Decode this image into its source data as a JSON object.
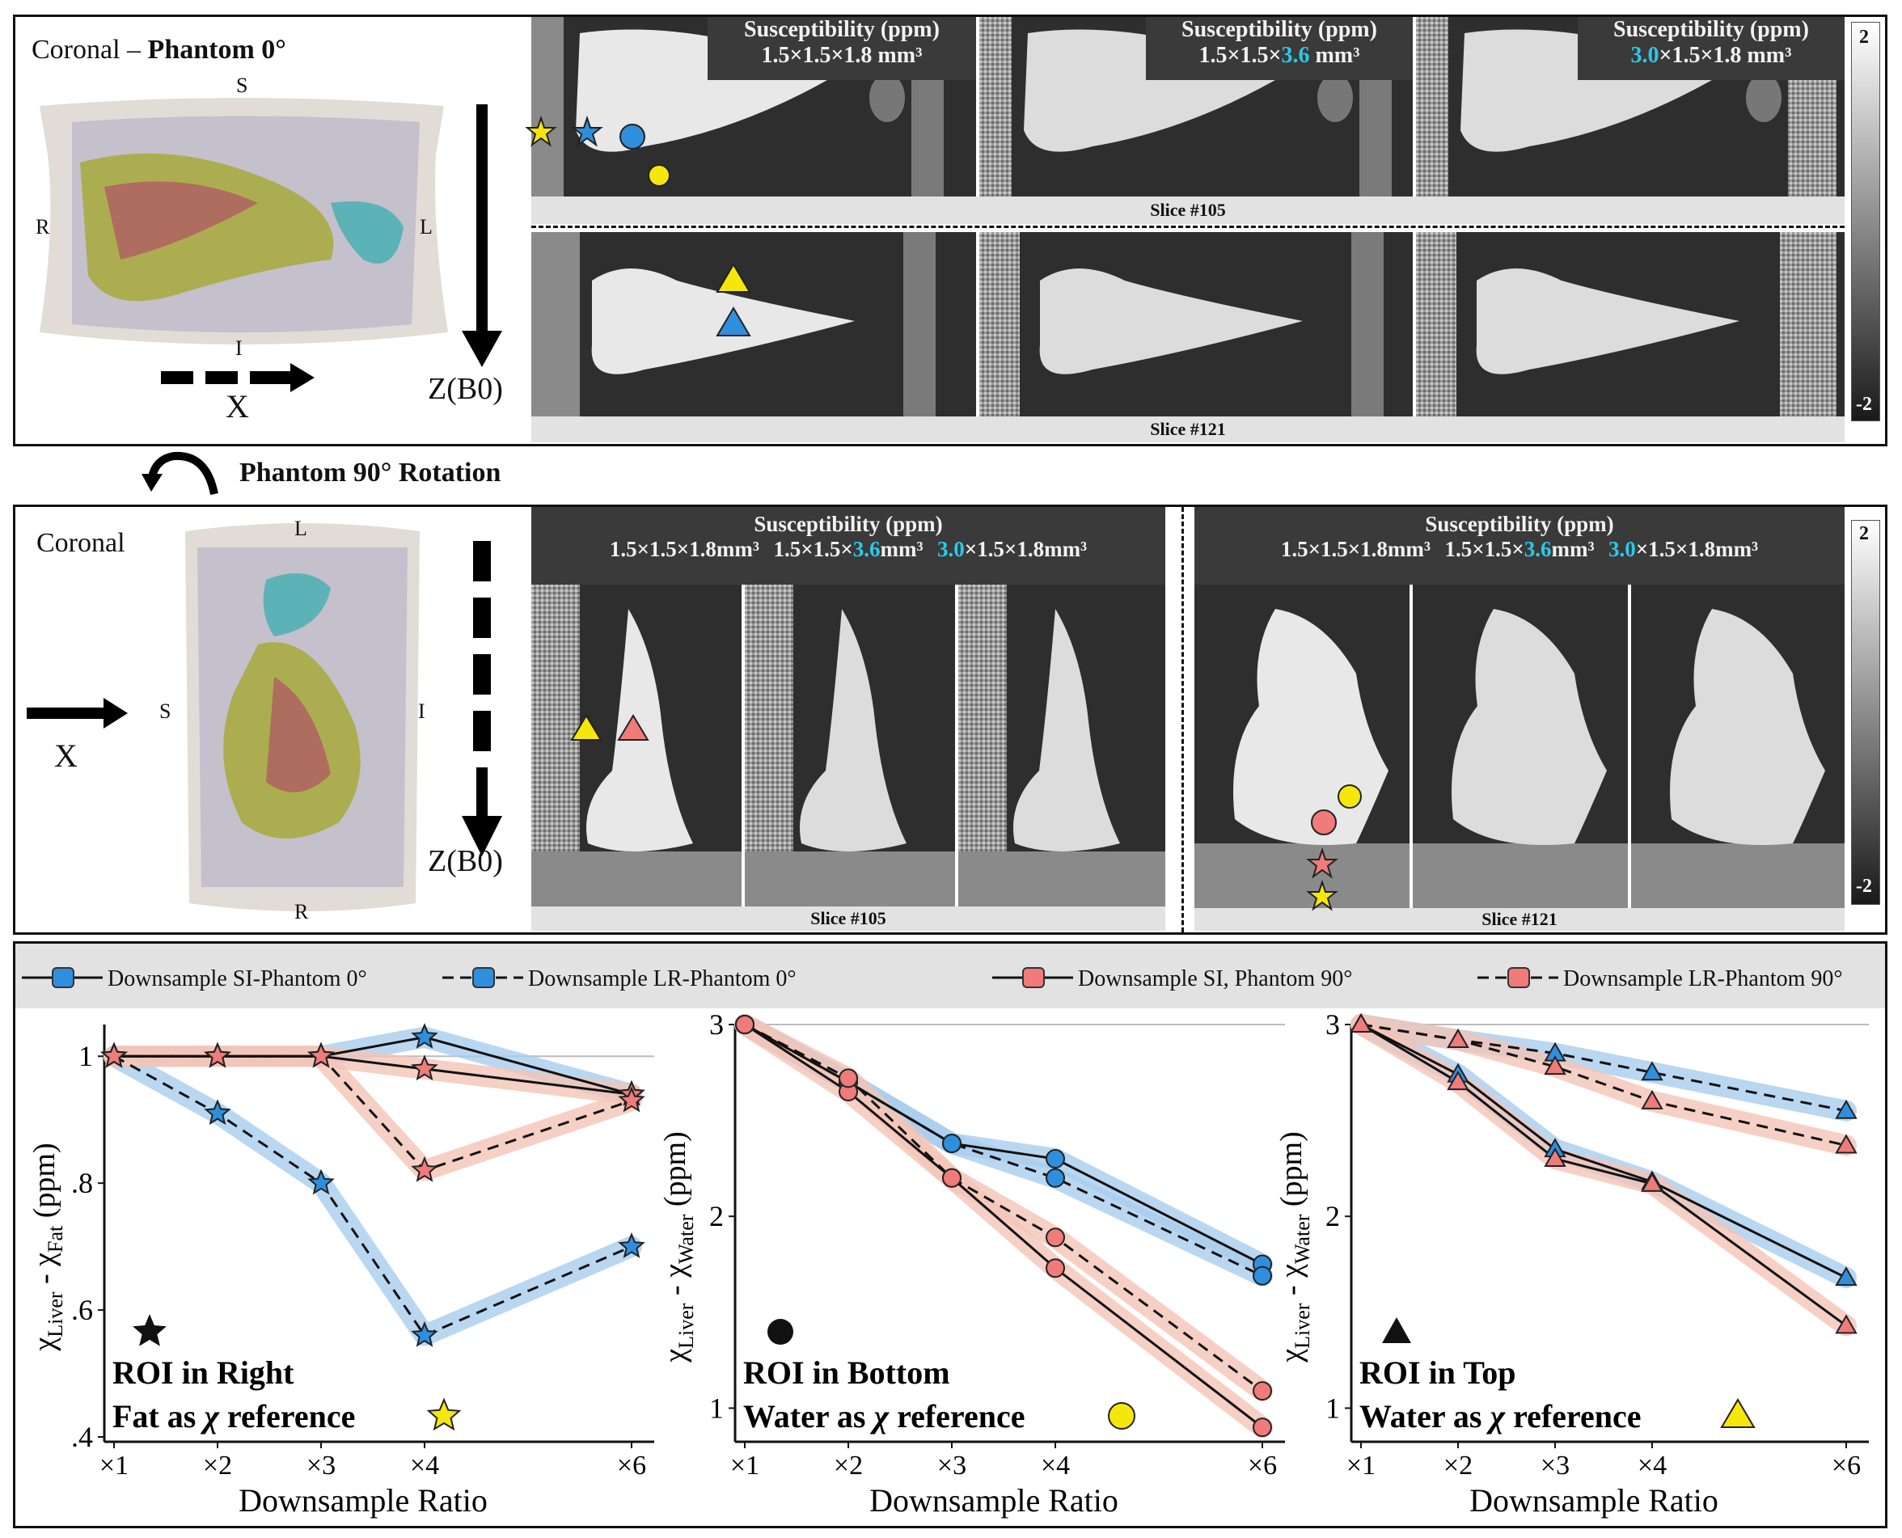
{
  "panel_top": {
    "coronal_label": "Coronal –",
    "phantom_label": "Phantom 0°",
    "dirs": {
      "S": "S",
      "I": "I",
      "R": "R",
      "L": "L"
    },
    "axis_x": "X",
    "axis_z": "Z(B0)",
    "header": "Susceptibility (ppm)",
    "res": [
      {
        "a": "1.5×1.5×1.8 mm³",
        "b": "",
        "c": ""
      },
      {
        "a": "1.5×1.5×",
        "b": "3.6",
        "c": " mm³"
      },
      {
        "a": "",
        "b": "3.0",
        "c": "×1.5×1.8 mm³"
      }
    ],
    "slice_a": "Slice #105",
    "slice_b": "Slice #121",
    "cbar_max": "2",
    "cbar_min": "-2"
  },
  "rotation_label": "Phantom 90° Rotation",
  "panel_mid": {
    "coronal_label": "Coronal",
    "dirs": {
      "L": "L",
      "S": "S",
      "I": "I",
      "R": "R"
    },
    "axis_x": "X",
    "axis_z": "Z(B0)",
    "header": "Susceptibility  (ppm)",
    "res_a": "1.5×1.5×1.8",
    "res_b1": "1.5×1.5×",
    "res_b2": "3.6",
    "res_c1": "3.0",
    "res_c2": "×1.5×1.8",
    "unit": "mm³",
    "slice_a": "Slice #105",
    "slice_b": "Slice #121",
    "cbar_max": "2",
    "cbar_min": "-2"
  },
  "legend": [
    {
      "label": "Downsample SI-Phantom 0°",
      "color": "#2f8fdc",
      "dash": false
    },
    {
      "label": "Downsample LR-Phantom 0°",
      "color": "#2f8fdc",
      "dash": true
    },
    {
      "label": "Downsample SI, Phantom 90°",
      "color": "#ef7b7b",
      "dash": false
    },
    {
      "label": "Downsample LR-Phantom 90°",
      "color": "#ef7b7b",
      "dash": true
    }
  ],
  "colors": {
    "blue": "#2f8fdc",
    "red": "#ef7b7b",
    "yellow": "#f5e60c",
    "blue_band": "#a9cdee",
    "red_band": "#f4c4b6"
  },
  "chart_data": [
    {
      "type": "line",
      "marker": "star",
      "categories": [
        "×1",
        "×2",
        "×3",
        "×4",
        "×6"
      ],
      "x": [
        1,
        2,
        3,
        4,
        6
      ],
      "ylim": [
        0.4,
        1.05
      ],
      "yticks": [
        0.4,
        0.6,
        0.8,
        1.0
      ],
      "ytick_labels": [
        ".4",
        ".6",
        ".8",
        "1"
      ],
      "xlabel": "Downsample Ratio",
      "ylabel": "χLiver - χFat (ppm)",
      "ylabel_main": "χ",
      "ylabel_sub1": "Liver",
      "ylabel_mid": " - χ",
      "ylabel_sub2": "Fat",
      "ylabel_unit": " (ppm)",
      "note1": "ROI in Right",
      "note2": "Fat as χ reference",
      "note2_pre": "Fat as ",
      "note2_chi": "χ",
      "note2_post": " reference",
      "series": [
        {
          "name": "Downsample SI-Phantom 0°",
          "values": [
            1.0,
            1.0,
            1.0,
            1.03,
            0.94
          ]
        },
        {
          "name": "Downsample LR-Phantom 0°",
          "values": [
            1.0,
            0.91,
            0.8,
            0.56,
            0.7
          ]
        },
        {
          "name": "Downsample SI, Phantom 90°",
          "values": [
            1.0,
            1.0,
            1.0,
            0.98,
            0.94
          ]
        },
        {
          "name": "Downsample LR-Phantom 90°",
          "values": [
            1.0,
            1.0,
            1.0,
            0.82,
            0.93
          ]
        }
      ]
    },
    {
      "type": "line",
      "marker": "circle",
      "categories": [
        "×1",
        "×2",
        "×3",
        "×4",
        "×6"
      ],
      "x": [
        1,
        2,
        3,
        4,
        6
      ],
      "ylim": [
        0.85,
        3.0
      ],
      "yticks": [
        1,
        2,
        3
      ],
      "ytick_labels": [
        "1",
        "2",
        "3"
      ],
      "xlabel": "Downsample Ratio",
      "ylabel": "χLiver - χWater (ppm)",
      "ylabel_main": "χ",
      "ylabel_sub1": "Liver",
      "ylabel_mid": " - χ",
      "ylabel_sub2": "Water",
      "ylabel_unit": " (ppm)",
      "note1": "ROI in Bottom",
      "note2": "Water as χ reference",
      "note2_pre": "Water as ",
      "note2_chi": "χ",
      "note2_post": " reference",
      "series": [
        {
          "name": "Downsample SI-Phantom 0°",
          "values": [
            3.0,
            2.7,
            2.38,
            2.3,
            1.75
          ]
        },
        {
          "name": "Downsample LR-Phantom 0°",
          "values": [
            3.0,
            2.7,
            2.38,
            2.2,
            1.69
          ]
        },
        {
          "name": "Downsample SI, Phantom 90°",
          "values": [
            3.0,
            2.65,
            2.2,
            1.73,
            0.9
          ]
        },
        {
          "name": "Downsample LR-Phantom 90°",
          "values": [
            3.0,
            2.72,
            2.2,
            1.89,
            1.09
          ]
        }
      ]
    },
    {
      "type": "line",
      "marker": "triangle",
      "categories": [
        "×1",
        "×2",
        "×3",
        "×4",
        "×6"
      ],
      "x": [
        1,
        2,
        3,
        4,
        6
      ],
      "ylim": [
        0.85,
        3.0
      ],
      "yticks": [
        1,
        2,
        3
      ],
      "ytick_labels": [
        "1",
        "2",
        "3"
      ],
      "xlabel": "Downsample Ratio",
      "ylabel": "χLiver - χWater (ppm)",
      "ylabel_main": "χ",
      "ylabel_sub1": "Liver",
      "ylabel_mid": " - χ",
      "ylabel_sub2": "Water",
      "ylabel_unit": " (ppm)",
      "note1": "ROI in Top",
      "note2": "Water as χ reference",
      "note2_pre": "Water as ",
      "note2_chi": "χ",
      "note2_post": " reference",
      "series": [
        {
          "name": "Downsample SI-Phantom 0°",
          "values": [
            3.0,
            2.74,
            2.35,
            2.18,
            1.68
          ]
        },
        {
          "name": "Downsample LR-Phantom 0°",
          "values": [
            3.0,
            2.92,
            2.85,
            2.75,
            2.55
          ]
        },
        {
          "name": "Downsample SI, Phantom 90°",
          "values": [
            3.0,
            2.7,
            2.3,
            2.17,
            1.43
          ]
        },
        {
          "name": "Downsample LR-Phantom 90°",
          "values": [
            3.0,
            2.92,
            2.78,
            2.6,
            2.37
          ]
        }
      ]
    }
  ]
}
